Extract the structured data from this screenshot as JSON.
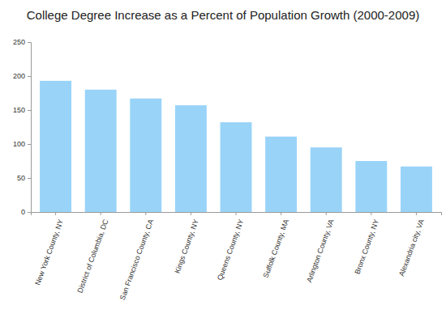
{
  "chart_data": {
    "type": "bar",
    "title": "College Degree Increase as a Percent of Population Growth (2000-2009)",
    "categories": [
      "New York County, NY",
      "District of Columbia, DC",
      "San Francisco County, CA",
      "Kings County, NY",
      "Queens County, NY",
      "Suffolk County, MA",
      "Arlington County, VA",
      "Bronx County, NY",
      "Alexandria city, VA"
    ],
    "values": [
      193,
      180,
      167,
      157,
      132,
      111,
      95,
      75,
      67
    ],
    "color": "#99d3f8",
    "ylim": [
      0,
      250
    ],
    "yticks": [
      0,
      50,
      100,
      150,
      200,
      250
    ],
    "grid": false
  }
}
